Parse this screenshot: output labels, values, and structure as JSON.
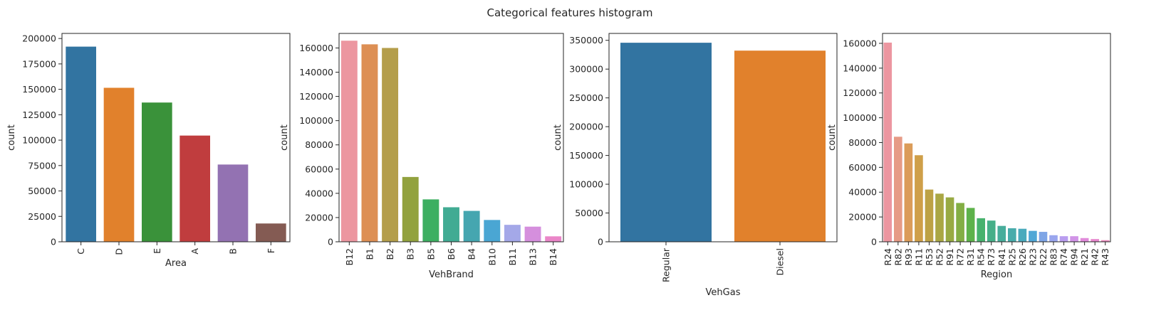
{
  "title": "Categorical features histogram",
  "chart_data": [
    {
      "type": "bar",
      "xlabel": "Area",
      "ylabel": "count",
      "ylim": [
        0,
        205000
      ],
      "yticks": [
        0,
        25000,
        50000,
        75000,
        100000,
        125000,
        150000,
        175000,
        200000
      ],
      "categories": [
        "C",
        "D",
        "E",
        "A",
        "B",
        "F"
      ],
      "values": [
        192000,
        151500,
        137000,
        104500,
        76000,
        18000
      ],
      "colors": [
        "#3274a1",
        "#e1812c",
        "#3a923a",
        "#c03d3e",
        "#9372b2",
        "#845b53"
      ]
    },
    {
      "type": "bar",
      "xlabel": "VehBrand",
      "ylabel": "count",
      "ylim": [
        0,
        172000
      ],
      "yticks": [
        0,
        20000,
        40000,
        60000,
        80000,
        100000,
        120000,
        140000,
        160000
      ],
      "categories": [
        "B12",
        "B1",
        "B2",
        "B3",
        "B5",
        "B6",
        "B4",
        "B10",
        "B11",
        "B13",
        "B14"
      ],
      "values": [
        166000,
        163000,
        160000,
        53500,
        35000,
        28500,
        25500,
        18000,
        14000,
        12500,
        4500
      ],
      "colors": [
        "#ec96a0",
        "#dd8f54",
        "#b49e4b",
        "#92a23e",
        "#3daf61",
        "#41ab93",
        "#45a6b0",
        "#4aa6d3",
        "#a4a8e8",
        "#d58fdd",
        "#ea86c8"
      ]
    },
    {
      "type": "bar",
      "xlabel": "VehGas",
      "ylabel": "count",
      "ylim": [
        0,
        362000
      ],
      "yticks": [
        0,
        50000,
        100000,
        150000,
        200000,
        250000,
        300000,
        350000
      ],
      "categories": [
        "Regular",
        "Diesel"
      ],
      "values": [
        345800,
        332100
      ],
      "colors": [
        "#3274a1",
        "#e1812c"
      ]
    },
    {
      "type": "bar",
      "xlabel": "Region",
      "ylabel": "count",
      "ylim": [
        0,
        168000
      ],
      "yticks": [
        0,
        20000,
        40000,
        60000,
        80000,
        100000,
        120000,
        140000,
        160000
      ],
      "categories": [
        "R24",
        "R82",
        "R93",
        "R11",
        "R53",
        "R52",
        "R91",
        "R72",
        "R31",
        "R54",
        "R73",
        "R41",
        "R25",
        "R26",
        "R23",
        "R22",
        "R83",
        "R74",
        "R94",
        "R21",
        "R42",
        "R43"
      ],
      "values": [
        160600,
        84700,
        79300,
        69800,
        42100,
        38800,
        35800,
        31300,
        27300,
        19000,
        17100,
        12800,
        10900,
        10500,
        8800,
        8000,
        5300,
        4500,
        4500,
        3000,
        2200,
        1300
      ],
      "colors": [
        "#ec96a0",
        "#e69b86",
        "#db9c59",
        "#cf9f49",
        "#bda245",
        "#aaa744",
        "#98aa43",
        "#83ae44",
        "#5db24a",
        "#47b26d",
        "#46af88",
        "#47ad9b",
        "#48acab",
        "#4aaabd",
        "#50a7d6",
        "#7ea5e6",
        "#9aa6ee",
        "#b99def",
        "#d194e7",
        "#e18bdb",
        "#e787cd",
        "#ea89bc"
      ]
    }
  ]
}
